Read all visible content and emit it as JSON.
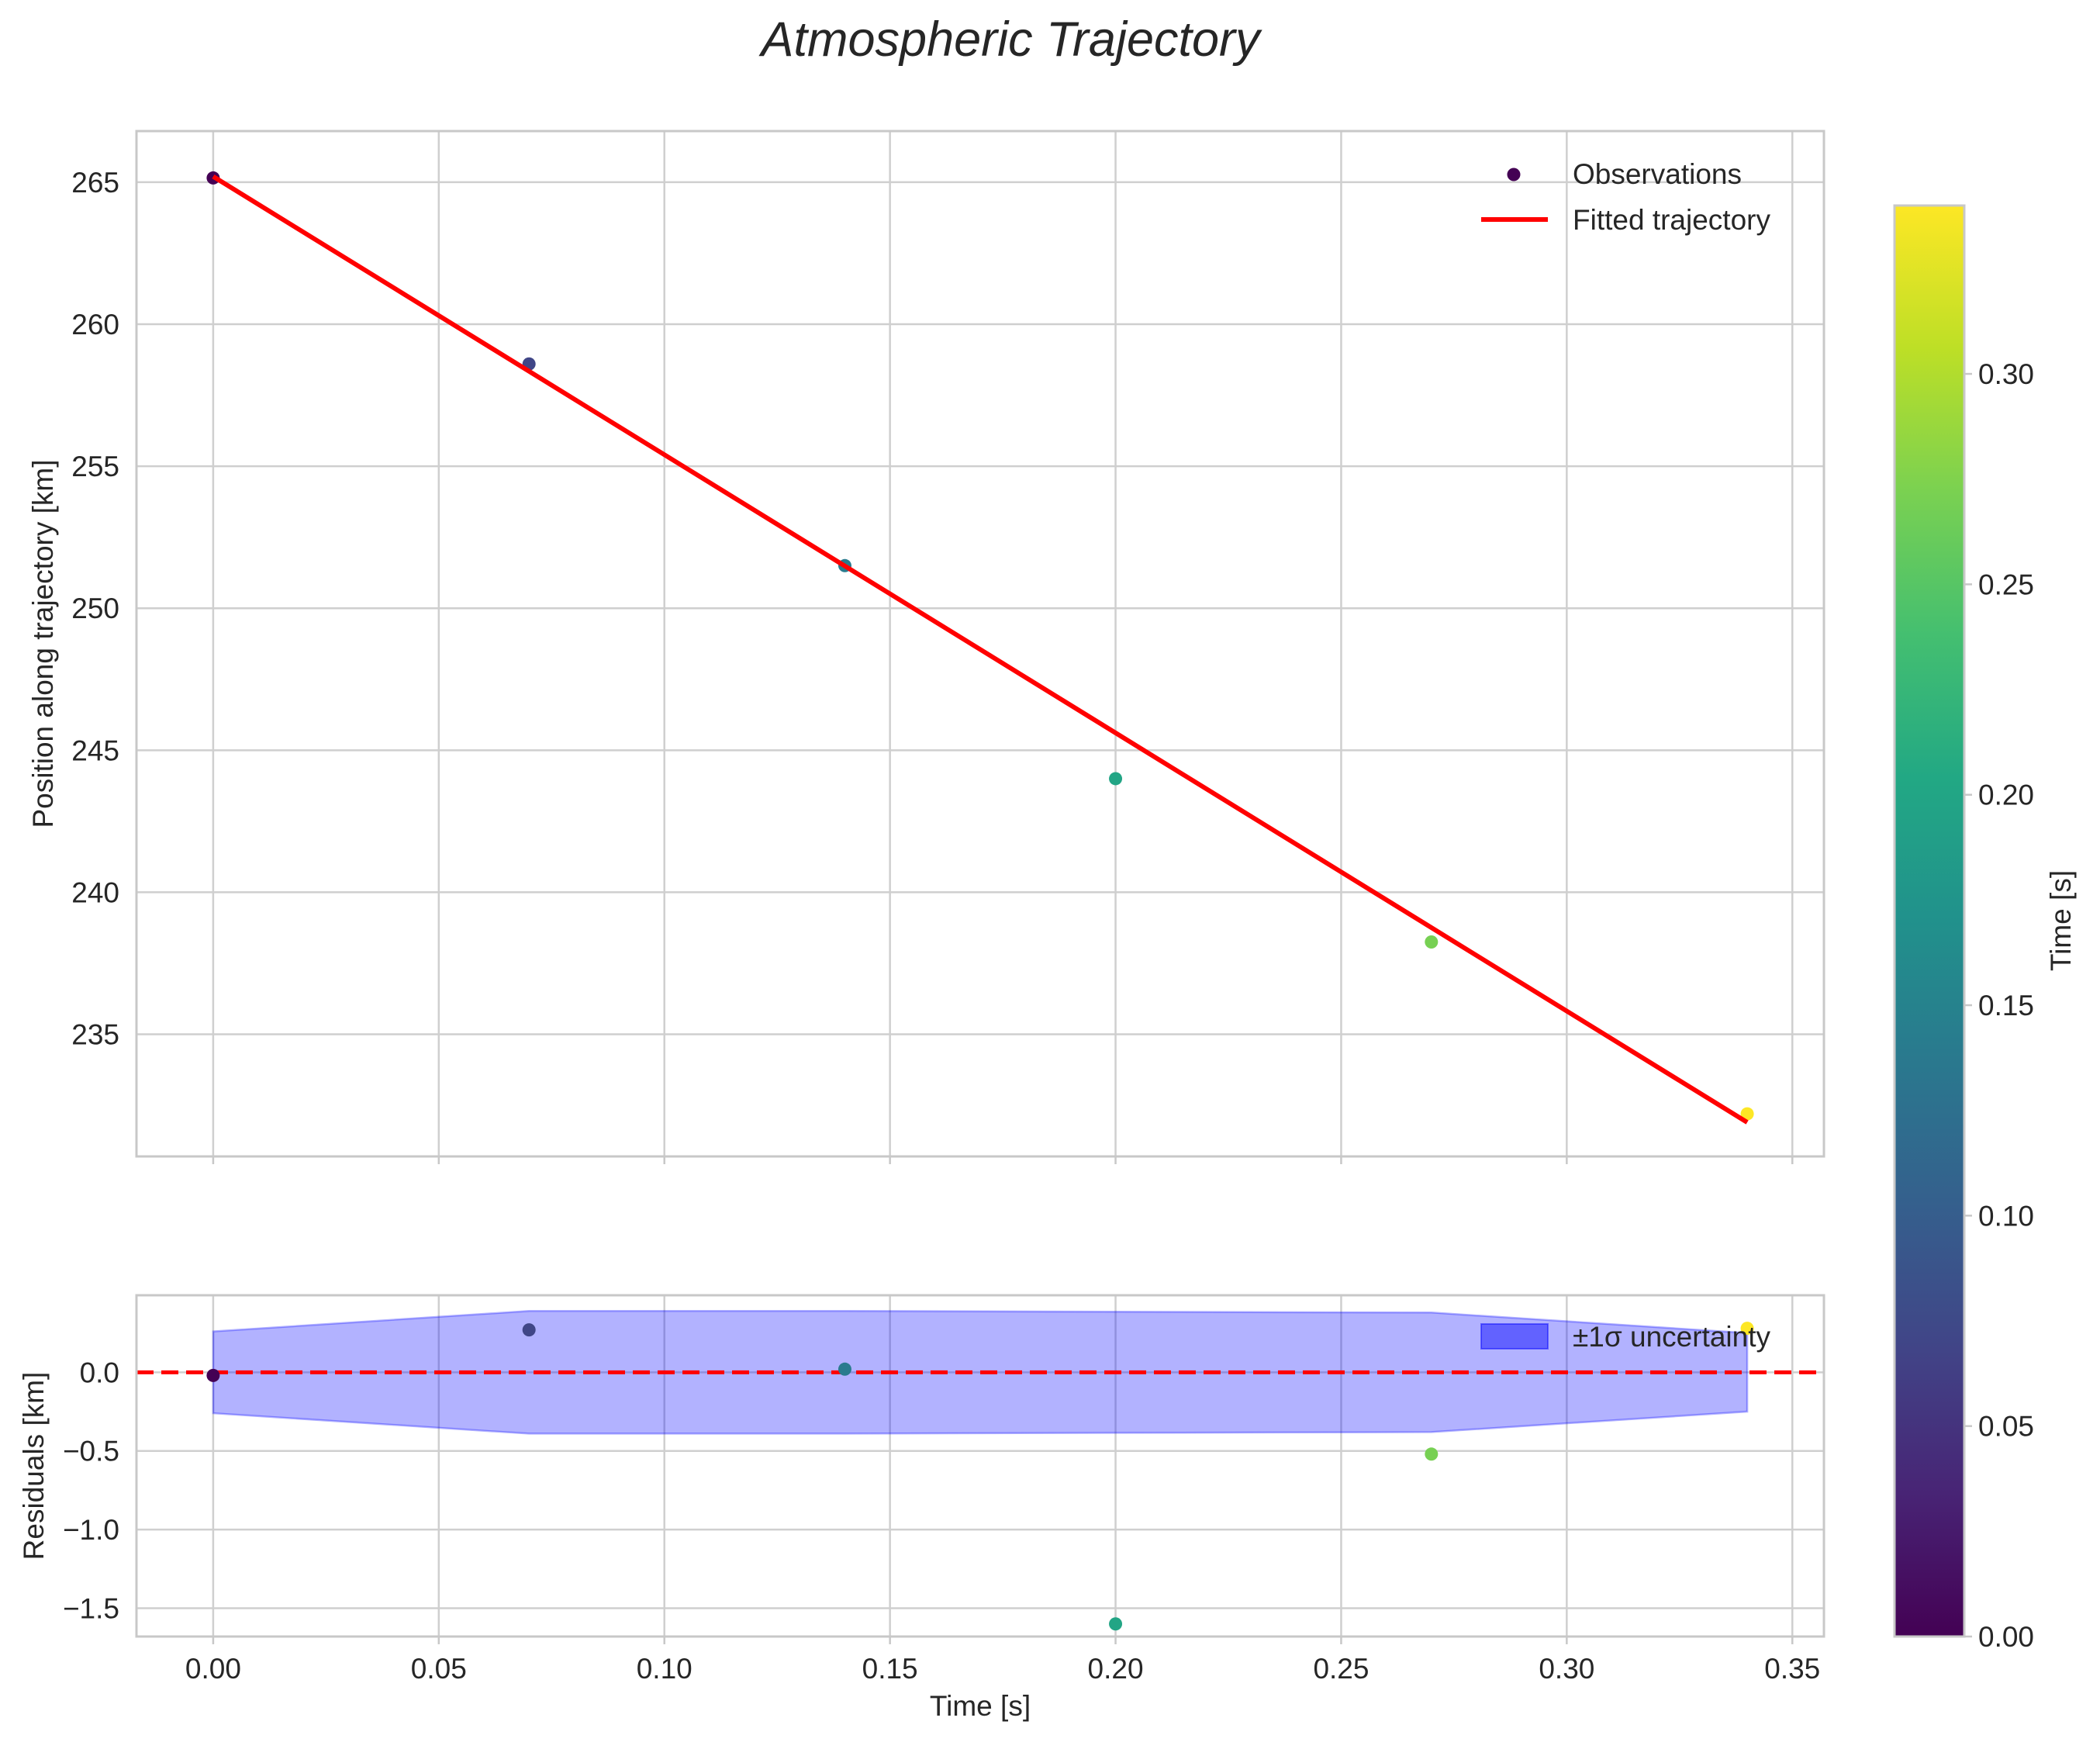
{
  "chart_data": {
    "type": "scatter",
    "title": "Atmospheric Trajectory",
    "colorscale": "viridis",
    "top_panel": {
      "xlabel": "",
      "ylabel": "Position along trajectory [km]",
      "xlim": [
        -0.017,
        0.357
      ],
      "ylim": [
        230.7,
        266.8
      ],
      "yticks": [
        235,
        240,
        245,
        250,
        255,
        260,
        265
      ],
      "ytick_labels": [
        "235",
        "240",
        "245",
        "250",
        "255",
        "260",
        "265"
      ],
      "observations": {
        "name": "Observations",
        "x": [
          0.0,
          0.07,
          0.14,
          0.2,
          0.27,
          0.34
        ],
        "y": [
          265.15,
          258.6,
          251.5,
          244.0,
          238.25,
          232.2
        ]
      },
      "fit": {
        "name": "Fitted trajectory",
        "color": "#ff0000",
        "x": [
          0.0,
          0.34
        ],
        "y": [
          265.2,
          231.9
        ]
      },
      "legend": {
        "observations_label": "Observations",
        "fit_label": "Fitted trajectory",
        "location": "upper right"
      }
    },
    "bottom_panel": {
      "xlabel": "Time [s]",
      "ylabel": "Residuals [km]",
      "xlim": [
        -0.017,
        0.357
      ],
      "ylim": [
        -1.68,
        0.49
      ],
      "xticks": [
        0.0,
        0.05,
        0.1,
        0.15,
        0.2,
        0.25,
        0.3,
        0.35
      ],
      "xtick_labels": [
        "0.00",
        "0.05",
        "0.10",
        "0.15",
        "0.20",
        "0.25",
        "0.30",
        "0.35"
      ],
      "yticks": [
        -1.5,
        -1.0,
        -0.5,
        0.0
      ],
      "ytick_labels": [
        "−1.5",
        "−1.0",
        "−0.5",
        "0.0"
      ],
      "residuals": {
        "x": [
          0.0,
          0.07,
          0.14,
          0.2,
          0.27,
          0.34
        ],
        "y": [
          -0.02,
          0.27,
          0.02,
          -1.6,
          -0.52,
          0.28
        ]
      },
      "uncertainty": {
        "name": "±1σ uncertainty",
        "color": "#0000ff",
        "x": [
          0.0,
          0.07,
          0.14,
          0.2,
          0.27,
          0.34
        ],
        "sigma": [
          0.26,
          0.39,
          0.39,
          0.385,
          0.38,
          0.25
        ]
      },
      "zero_line": {
        "y": 0.0,
        "color": "#ff0000",
        "style": "dashed"
      },
      "legend": {
        "band_label": "±1σ uncertainty",
        "location": "upper right"
      }
    },
    "colorbar": {
      "label": "Time [s]",
      "range": [
        0.0,
        0.34
      ],
      "ticks": [
        0.0,
        0.05,
        0.1,
        0.15,
        0.2,
        0.25,
        0.3
      ],
      "tick_labels": [
        "0.00",
        "0.05",
        "0.10",
        "0.15",
        "0.20",
        "0.25",
        "0.30"
      ]
    }
  }
}
